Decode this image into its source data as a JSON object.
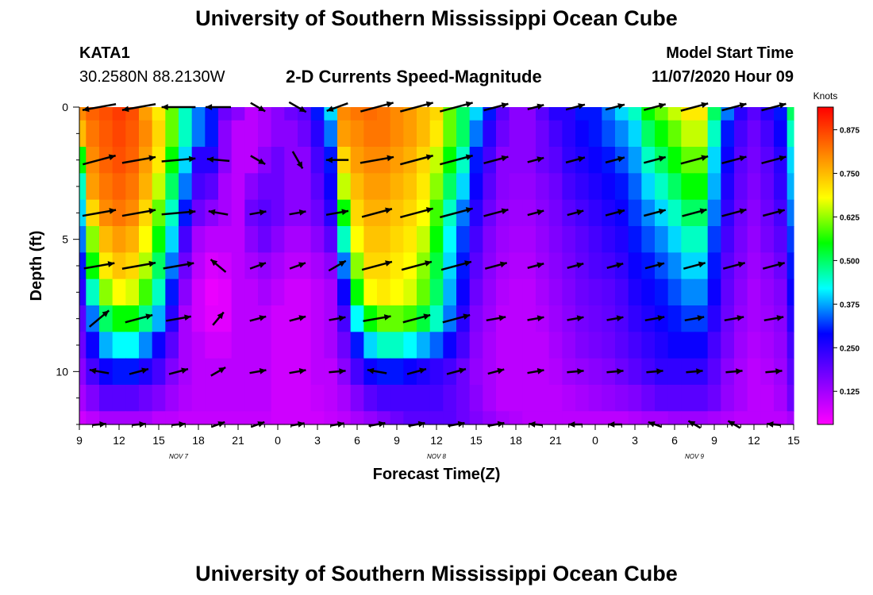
{
  "header": {
    "title": "University of Southern Mississippi Ocean Cube",
    "station_id": "KATA1",
    "coordinates": "30.2580N 88.2130W",
    "subtitle": "2-D Currents Speed-Magnitude",
    "model_start_label": "Model Start Time",
    "model_start_value": "11/07/2020 Hour 09"
  },
  "footer": {
    "title": "University of Southern Mississippi Ocean Cube"
  },
  "chart_data": {
    "type": "heatmap",
    "title": "2-D Currents Speed-Magnitude",
    "xlabel": "Forecast Time(Z)",
    "ylabel": "Depth (ft)",
    "x_range_hours": [
      0,
      54
    ],
    "x_ticks": [
      {
        "h": 0,
        "label": "9"
      },
      {
        "h": 3,
        "label": "12"
      },
      {
        "h": 6,
        "label": "15"
      },
      {
        "h": 9,
        "label": "18"
      },
      {
        "h": 12,
        "label": "21"
      },
      {
        "h": 15,
        "label": "0"
      },
      {
        "h": 18,
        "label": "3"
      },
      {
        "h": 21,
        "label": "6"
      },
      {
        "h": 24,
        "label": "9"
      },
      {
        "h": 27,
        "label": "12"
      },
      {
        "h": 30,
        "label": "15"
      },
      {
        "h": 33,
        "label": "18"
      },
      {
        "h": 36,
        "label": "21"
      },
      {
        "h": 39,
        "label": "0"
      },
      {
        "h": 42,
        "label": "3"
      },
      {
        "h": 45,
        "label": "6"
      },
      {
        "h": 48,
        "label": "9"
      },
      {
        "h": 51,
        "label": "12"
      },
      {
        "h": 54,
        "label": "15"
      }
    ],
    "date_labels": [
      {
        "h": 7.5,
        "label": "NOV 7"
      },
      {
        "h": 27,
        "label": "NOV 8"
      },
      {
        "h": 46.5,
        "label": "NOV 9"
      }
    ],
    "y_range_ft": [
      0,
      12
    ],
    "y_ticks": [
      {
        "v": 0,
        "label": "0"
      },
      {
        "v": 5,
        "label": "5"
      },
      {
        "v": 10,
        "label": "10"
      }
    ],
    "y_inverted": true,
    "colorbar": {
      "title": "Knots",
      "range": [
        0.03,
        0.94
      ],
      "ticks": [
        0.125,
        0.25,
        0.375,
        0.5,
        0.625,
        0.75,
        0.875
      ],
      "tick_labels": [
        "0.125",
        "0.250",
        "0.375",
        "0.500",
        "0.625",
        "0.750",
        "0.875"
      ]
    },
    "colorscale": [
      "#ff00ff",
      "#8000ff",
      "#0000ff",
      "#00ffff",
      "#00ff00",
      "#ffff00",
      "#ff8000",
      "#ff0000"
    ],
    "cols_hours": [
      0,
      1,
      2,
      3,
      4,
      5,
      6,
      7,
      8,
      9,
      10,
      11,
      12,
      13,
      14,
      15,
      16,
      17,
      18,
      19,
      20,
      21,
      22,
      23,
      24,
      25,
      26,
      27,
      28,
      29,
      30,
      31,
      32,
      33,
      34,
      35,
      36,
      37,
      38,
      39,
      40,
      41,
      42,
      43,
      44,
      45,
      46,
      47,
      48,
      49,
      50,
      51,
      52,
      53,
      54
    ],
    "depth_rows_ft": [
      0,
      1,
      2,
      3,
      4,
      5,
      6,
      7,
      8,
      9,
      10,
      11,
      12
    ],
    "speed_knots": [
      [
        0.8,
        0.84,
        0.86,
        0.88,
        0.86,
        0.78,
        0.7,
        0.6,
        0.45,
        0.35,
        0.3,
        0.18,
        0.15,
        0.1,
        0.12,
        0.15,
        0.18,
        0.2,
        0.3,
        0.4,
        0.8,
        0.82,
        0.83,
        0.82,
        0.8,
        0.78,
        0.75,
        0.72,
        0.6,
        0.5,
        0.4,
        0.3,
        0.2,
        0.15,
        0.15,
        0.2,
        0.25,
        0.25,
        0.3,
        0.3,
        0.35,
        0.4,
        0.45,
        0.55,
        0.6,
        0.65,
        0.7,
        0.7,
        0.5,
        0.35,
        0.25,
        0.2,
        0.25,
        0.3,
        0.5
      ],
      [
        0.75,
        0.82,
        0.85,
        0.87,
        0.85,
        0.8,
        0.72,
        0.6,
        0.45,
        0.35,
        0.3,
        0.15,
        0.1,
        0.1,
        0.12,
        0.15,
        0.15,
        0.18,
        0.25,
        0.35,
        0.78,
        0.8,
        0.82,
        0.82,
        0.8,
        0.78,
        0.75,
        0.7,
        0.6,
        0.5,
        0.35,
        0.25,
        0.18,
        0.15,
        0.15,
        0.18,
        0.22,
        0.25,
        0.28,
        0.3,
        0.33,
        0.36,
        0.4,
        0.5,
        0.55,
        0.6,
        0.65,
        0.65,
        0.45,
        0.3,
        0.22,
        0.18,
        0.22,
        0.28,
        0.45
      ],
      [
        0.55,
        0.8,
        0.84,
        0.86,
        0.84,
        0.78,
        0.7,
        0.55,
        0.4,
        0.25,
        0.25,
        0.15,
        0.1,
        0.1,
        0.15,
        0.18,
        0.15,
        0.15,
        0.22,
        0.3,
        0.72,
        0.78,
        0.8,
        0.8,
        0.78,
        0.76,
        0.72,
        0.65,
        0.55,
        0.45,
        0.3,
        0.22,
        0.15,
        0.15,
        0.15,
        0.18,
        0.2,
        0.24,
        0.26,
        0.28,
        0.3,
        0.33,
        0.37,
        0.45,
        0.5,
        0.55,
        0.6,
        0.6,
        0.4,
        0.28,
        0.2,
        0.17,
        0.2,
        0.25,
        0.4
      ],
      [
        0.45,
        0.78,
        0.82,
        0.84,
        0.82,
        0.76,
        0.65,
        0.5,
        0.35,
        0.22,
        0.2,
        0.12,
        0.1,
        0.15,
        0.18,
        0.18,
        0.15,
        0.15,
        0.2,
        0.28,
        0.65,
        0.75,
        0.78,
        0.78,
        0.76,
        0.74,
        0.7,
        0.62,
        0.5,
        0.4,
        0.28,
        0.2,
        0.15,
        0.14,
        0.14,
        0.16,
        0.18,
        0.22,
        0.24,
        0.26,
        0.28,
        0.3,
        0.34,
        0.4,
        0.45,
        0.5,
        0.55,
        0.55,
        0.38,
        0.26,
        0.19,
        0.16,
        0.19,
        0.24,
        0.38
      ],
      [
        0.4,
        0.72,
        0.8,
        0.82,
        0.8,
        0.72,
        0.6,
        0.45,
        0.3,
        0.18,
        0.15,
        0.12,
        0.1,
        0.18,
        0.2,
        0.18,
        0.15,
        0.15,
        0.18,
        0.25,
        0.55,
        0.72,
        0.76,
        0.76,
        0.74,
        0.72,
        0.68,
        0.58,
        0.45,
        0.35,
        0.25,
        0.18,
        0.14,
        0.13,
        0.13,
        0.15,
        0.17,
        0.2,
        0.22,
        0.24,
        0.26,
        0.28,
        0.32,
        0.36,
        0.4,
        0.45,
        0.5,
        0.5,
        0.35,
        0.24,
        0.18,
        0.15,
        0.18,
        0.22,
        0.35
      ],
      [
        0.35,
        0.62,
        0.75,
        0.78,
        0.76,
        0.68,
        0.55,
        0.4,
        0.22,
        0.12,
        0.1,
        0.1,
        0.1,
        0.15,
        0.18,
        0.15,
        0.12,
        0.12,
        0.15,
        0.2,
        0.45,
        0.68,
        0.74,
        0.74,
        0.72,
        0.7,
        0.65,
        0.55,
        0.42,
        0.32,
        0.22,
        0.16,
        0.13,
        0.12,
        0.12,
        0.14,
        0.16,
        0.18,
        0.2,
        0.22,
        0.24,
        0.26,
        0.3,
        0.33,
        0.36,
        0.4,
        0.45,
        0.45,
        0.32,
        0.22,
        0.17,
        0.14,
        0.17,
        0.2,
        0.32
      ],
      [
        0.3,
        0.55,
        0.7,
        0.74,
        0.72,
        0.64,
        0.5,
        0.35,
        0.18,
        0.1,
        0.07,
        0.08,
        0.1,
        0.12,
        0.14,
        0.12,
        0.1,
        0.1,
        0.12,
        0.15,
        0.35,
        0.62,
        0.72,
        0.72,
        0.7,
        0.68,
        0.62,
        0.52,
        0.4,
        0.3,
        0.2,
        0.15,
        0.12,
        0.11,
        0.11,
        0.13,
        0.15,
        0.17,
        0.19,
        0.21,
        0.22,
        0.24,
        0.28,
        0.3,
        0.33,
        0.36,
        0.4,
        0.4,
        0.3,
        0.2,
        0.16,
        0.13,
        0.15,
        0.18,
        0.3
      ],
      [
        0.25,
        0.45,
        0.62,
        0.68,
        0.66,
        0.58,
        0.45,
        0.3,
        0.15,
        0.08,
        0.05,
        0.06,
        0.1,
        0.1,
        0.12,
        0.1,
        0.08,
        0.08,
        0.1,
        0.12,
        0.28,
        0.55,
        0.68,
        0.7,
        0.68,
        0.66,
        0.6,
        0.5,
        0.38,
        0.28,
        0.18,
        0.14,
        0.11,
        0.1,
        0.1,
        0.12,
        0.14,
        0.16,
        0.18,
        0.19,
        0.2,
        0.22,
        0.26,
        0.28,
        0.3,
        0.33,
        0.36,
        0.36,
        0.28,
        0.19,
        0.15,
        0.12,
        0.14,
        0.16,
        0.28
      ],
      [
        0.2,
        0.35,
        0.5,
        0.55,
        0.55,
        0.48,
        0.38,
        0.25,
        0.12,
        0.08,
        0.06,
        0.06,
        0.1,
        0.1,
        0.1,
        0.08,
        0.08,
        0.08,
        0.1,
        0.12,
        0.22,
        0.42,
        0.55,
        0.6,
        0.6,
        0.58,
        0.52,
        0.45,
        0.35,
        0.25,
        0.16,
        0.13,
        0.1,
        0.1,
        0.1,
        0.11,
        0.13,
        0.15,
        0.17,
        0.18,
        0.19,
        0.21,
        0.24,
        0.26,
        0.28,
        0.3,
        0.32,
        0.32,
        0.25,
        0.18,
        0.14,
        0.12,
        0.13,
        0.15,
        0.25
      ],
      [
        0.18,
        0.28,
        0.38,
        0.42,
        0.42,
        0.36,
        0.28,
        0.2,
        0.12,
        0.1,
        0.08,
        0.08,
        0.1,
        0.1,
        0.1,
        0.08,
        0.08,
        0.08,
        0.1,
        0.12,
        0.18,
        0.3,
        0.4,
        0.45,
        0.45,
        0.42,
        0.38,
        0.34,
        0.28,
        0.22,
        0.15,
        0.12,
        0.1,
        0.1,
        0.1,
        0.1,
        0.12,
        0.14,
        0.16,
        0.17,
        0.18,
        0.2,
        0.22,
        0.24,
        0.26,
        0.28,
        0.28,
        0.28,
        0.22,
        0.17,
        0.13,
        0.11,
        0.12,
        0.14,
        0.22
      ],
      [
        0.15,
        0.22,
        0.28,
        0.3,
        0.3,
        0.26,
        0.22,
        0.16,
        0.12,
        0.1,
        0.1,
        0.1,
        0.1,
        0.1,
        0.1,
        0.08,
        0.08,
        0.08,
        0.1,
        0.1,
        0.15,
        0.22,
        0.28,
        0.3,
        0.3,
        0.28,
        0.26,
        0.24,
        0.22,
        0.18,
        0.14,
        0.12,
        0.1,
        0.1,
        0.1,
        0.1,
        0.11,
        0.13,
        0.14,
        0.15,
        0.16,
        0.18,
        0.2,
        0.22,
        0.24,
        0.24,
        0.24,
        0.24,
        0.2,
        0.15,
        0.12,
        0.1,
        0.11,
        0.13,
        0.2
      ],
      [
        0.12,
        0.16,
        0.2,
        0.2,
        0.2,
        0.18,
        0.16,
        0.13,
        0.11,
        0.1,
        0.1,
        0.1,
        0.1,
        0.1,
        0.1,
        0.08,
        0.08,
        0.08,
        0.09,
        0.1,
        0.12,
        0.16,
        0.2,
        0.22,
        0.22,
        0.22,
        0.22,
        0.22,
        0.2,
        0.18,
        0.15,
        0.12,
        0.1,
        0.1,
        0.1,
        0.1,
        0.1,
        0.11,
        0.12,
        0.13,
        0.14,
        0.15,
        0.16,
        0.18,
        0.2,
        0.2,
        0.2,
        0.2,
        0.18,
        0.14,
        0.12,
        0.1,
        0.1,
        0.12,
        0.18
      ],
      [
        0.08,
        0.1,
        0.12,
        0.12,
        0.12,
        0.12,
        0.1,
        0.1,
        0.09,
        0.09,
        0.09,
        0.09,
        0.09,
        0.09,
        0.09,
        0.08,
        0.08,
        0.08,
        0.08,
        0.09,
        0.1,
        0.12,
        0.14,
        0.16,
        0.18,
        0.2,
        0.2,
        0.2,
        0.2,
        0.18,
        0.16,
        0.14,
        0.12,
        0.11,
        0.1,
        0.1,
        0.1,
        0.1,
        0.1,
        0.1,
        0.1,
        0.1,
        0.11,
        0.12,
        0.12,
        0.13,
        0.13,
        0.13,
        0.12,
        0.11,
        0.1,
        0.1,
        0.1,
        0.1,
        0.12
      ]
    ],
    "vector_times_hours": [
      1.5,
      4.5,
      7.5,
      10.5,
      13.5,
      16.5,
      19.5,
      22.5,
      25.5,
      28.5,
      31.5,
      34.5,
      37.5,
      40.5,
      43.5,
      46.5,
      49.5,
      52.5
    ],
    "vector_depths_ft": [
      0,
      2,
      4,
      6,
      8,
      10,
      12
    ],
    "vector_direction_deg": [
      [
        190,
        190,
        180,
        180,
        330,
        330,
        200,
        15,
        15,
        15,
        15,
        15,
        15,
        15,
        15,
        15,
        15,
        15
      ],
      [
        15,
        10,
        5,
        175,
        330,
        300,
        180,
        10,
        15,
        15,
        15,
        15,
        15,
        15,
        15,
        15,
        15,
        15
      ],
      [
        10,
        10,
        5,
        170,
        10,
        10,
        10,
        15,
        15,
        15,
        15,
        15,
        15,
        15,
        15,
        15,
        15,
        15
      ],
      [
        10,
        10,
        10,
        140,
        20,
        20,
        30,
        15,
        15,
        15,
        15,
        15,
        15,
        15,
        15,
        15,
        15,
        15
      ],
      [
        40,
        15,
        10,
        50,
        15,
        15,
        10,
        10,
        15,
        15,
        10,
        10,
        10,
        10,
        10,
        10,
        10,
        10
      ],
      [
        170,
        15,
        15,
        30,
        10,
        10,
        5,
        170,
        15,
        15,
        15,
        10,
        5,
        5,
        5,
        5,
        5,
        5
      ],
      [
        5,
        5,
        5,
        20,
        20,
        10,
        10,
        10,
        10,
        10,
        10,
        175,
        180,
        180,
        160,
        150,
        150,
        175
      ]
    ],
    "vector_magnitude_knots": [
      [
        0.8,
        0.8,
        0.8,
        0.5,
        0.2,
        0.3,
        0.4,
        0.8,
        0.8,
        0.8,
        0.5,
        0.2,
        0.3,
        0.3,
        0.4,
        0.6,
        0.5,
        0.5
      ],
      [
        0.8,
        0.8,
        0.8,
        0.4,
        0.2,
        0.3,
        0.4,
        0.8,
        0.8,
        0.8,
        0.5,
        0.2,
        0.3,
        0.3,
        0.4,
        0.6,
        0.5,
        0.5
      ],
      [
        0.8,
        0.8,
        0.8,
        0.3,
        0.2,
        0.2,
        0.4,
        0.7,
        0.8,
        0.8,
        0.5,
        0.2,
        0.2,
        0.3,
        0.4,
        0.5,
        0.5,
        0.4
      ],
      [
        0.7,
        0.8,
        0.7,
        0.3,
        0.2,
        0.2,
        0.3,
        0.7,
        0.7,
        0.7,
        0.4,
        0.2,
        0.2,
        0.2,
        0.3,
        0.4,
        0.4,
        0.4
      ],
      [
        0.5,
        0.6,
        0.5,
        0.2,
        0.2,
        0.2,
        0.2,
        0.6,
        0.6,
        0.6,
        0.3,
        0.2,
        0.2,
        0.2,
        0.3,
        0.3,
        0.3,
        0.3
      ],
      [
        0.3,
        0.3,
        0.3,
        0.2,
        0.2,
        0.2,
        0.2,
        0.3,
        0.3,
        0.3,
        0.2,
        0.2,
        0.2,
        0.2,
        0.2,
        0.2,
        0.2,
        0.2
      ],
      [
        0.1,
        0.1,
        0.1,
        0.1,
        0.1,
        0.1,
        0.1,
        0.2,
        0.2,
        0.2,
        0.2,
        0.1,
        0.1,
        0.1,
        0.1,
        0.1,
        0.1,
        0.1
      ]
    ]
  }
}
